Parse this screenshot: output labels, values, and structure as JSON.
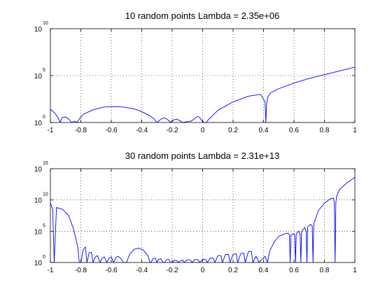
{
  "colors": {
    "background": "#ffffff",
    "axes": "#000000",
    "grid": "#000000",
    "line": "#0000ff"
  },
  "chart_data": [
    {
      "type": "line",
      "title": "10 random points    Lambda = 2.35e+06",
      "xlabel": "",
      "ylabel": "",
      "y_scale": "log",
      "xlim": [
        -1,
        1
      ],
      "ylim_log10": [
        0,
        10
      ],
      "grid": true,
      "x_ticks": [
        "-1",
        "-0.8",
        "-0.6",
        "-0.4",
        "-0.2",
        "0",
        "0.2",
        "0.4",
        "0.6",
        "0.8",
        "1"
      ],
      "y_ticks": [
        {
          "base": "10",
          "exp": "0",
          "log10": 0
        },
        {
          "base": "10",
          "exp": "5",
          "log10": 5
        },
        {
          "base": "10",
          "exp": "10",
          "log10": 10
        }
      ],
      "series": [
        {
          "x": [
            -1.0,
            -0.97,
            -0.95,
            -0.935,
            -0.925,
            -0.9,
            -0.875,
            -0.86,
            -0.84,
            -0.825,
            -0.805,
            -0.78,
            -0.72,
            -0.65,
            -0.58,
            -0.52,
            -0.45,
            -0.4,
            -0.35,
            -0.32,
            -0.3,
            -0.275,
            -0.25,
            -0.23,
            -0.21,
            -0.19,
            -0.17,
            -0.15,
            -0.13,
            -0.1,
            -0.075,
            -0.05,
            -0.035,
            -0.02,
            -0.005,
            0.01,
            0.025,
            0.035,
            0.1,
            0.2,
            0.3,
            0.38,
            0.41,
            0.415,
            0.42,
            0.43,
            0.45,
            0.5,
            0.6,
            0.7,
            0.8,
            0.9,
            1.0
          ],
          "log10": [
            1.4,
            1.0,
            0.5,
            0.0,
            0.5,
            0.6,
            0.3,
            0.0,
            0.15,
            0.0,
            0.5,
            0.9,
            1.35,
            1.65,
            1.7,
            1.65,
            1.45,
            1.15,
            0.75,
            0.4,
            0.0,
            0.35,
            0.5,
            0.3,
            0.0,
            0.28,
            0.35,
            0.2,
            0.0,
            0.1,
            0.15,
            0.45,
            0.65,
            0.55,
            0.2,
            0.0,
            0.0,
            0.25,
            1.3,
            2.2,
            2.8,
            3.0,
            2.2,
            0.0,
            2.0,
            2.8,
            3.2,
            3.6,
            4.2,
            4.7,
            5.1,
            5.5,
            5.9
          ]
        }
      ]
    },
    {
      "type": "line",
      "title": "30 random points    Lambda = 2.31e+13",
      "xlabel": "",
      "ylabel": "",
      "y_scale": "log",
      "xlim": [
        -1,
        1
      ],
      "ylim_log10": [
        0,
        15
      ],
      "grid": true,
      "x_ticks": [
        "-1",
        "-0.8",
        "-0.6",
        "-0.4",
        "-0.2",
        "0",
        "0.2",
        "0.4",
        "0.6",
        "0.8",
        "1"
      ],
      "y_ticks": [
        {
          "base": "10",
          "exp": "0",
          "log10": 0
        },
        {
          "base": "10",
          "exp": "5",
          "log10": 5
        },
        {
          "base": "10",
          "exp": "10",
          "log10": 10
        },
        {
          "base": "10",
          "exp": "15",
          "log10": 15
        }
      ],
      "series": [
        {
          "x": [
            -1.0,
            -0.985,
            -0.975,
            -0.96,
            -0.92,
            -0.88,
            -0.85,
            -0.82,
            -0.81,
            -0.8,
            -0.785,
            -0.77,
            -0.76,
            -0.745,
            -0.73,
            -0.72,
            -0.705,
            -0.69,
            -0.675,
            -0.66,
            -0.645,
            -0.63,
            -0.615,
            -0.6,
            -0.585,
            -0.57,
            -0.555,
            -0.54,
            -0.52,
            -0.5,
            -0.48,
            -0.45,
            -0.42,
            -0.39,
            -0.36,
            -0.345,
            -0.34,
            -0.325,
            -0.31,
            -0.3,
            -0.29,
            -0.275,
            -0.26,
            -0.25,
            -0.24,
            -0.225,
            -0.21,
            -0.2,
            -0.185,
            -0.17,
            -0.16,
            -0.145,
            -0.13,
            -0.12,
            -0.1,
            -0.08,
            -0.07,
            -0.05,
            -0.03,
            -0.02,
            0.0,
            0.02,
            0.03,
            0.05,
            0.07,
            0.08,
            0.1,
            0.12,
            0.13,
            0.15,
            0.17,
            0.18,
            0.2,
            0.22,
            0.23,
            0.25,
            0.27,
            0.28,
            0.3,
            0.32,
            0.33,
            0.35,
            0.37,
            0.39,
            0.41,
            0.425,
            0.44,
            0.47,
            0.5,
            0.54,
            0.56,
            0.57,
            0.575,
            0.58,
            0.6,
            0.605,
            0.61,
            0.615,
            0.63,
            0.64,
            0.645,
            0.65,
            0.67,
            0.68,
            0.685,
            0.69,
            0.71,
            0.72,
            0.725,
            0.73,
            0.76,
            0.8,
            0.84,
            0.86,
            0.865,
            0.87,
            0.875,
            0.88,
            0.9,
            0.95,
            1.0
          ],
          "log10": [
            9.5,
            8.5,
            0.0,
            8.8,
            8.5,
            7.5,
            5.5,
            2.5,
            0.0,
            0.0,
            2.0,
            2.5,
            0.0,
            1.6,
            1.6,
            0.0,
            0.9,
            1.1,
            0.0,
            0.7,
            0.9,
            0.0,
            0.7,
            0.9,
            0.0,
            0.8,
            1.0,
            0.7,
            0.0,
            0.0,
            1.3,
            2.1,
            2.3,
            2.0,
            1.1,
            0.0,
            0.0,
            0.6,
            0.7,
            0.0,
            0.5,
            0.6,
            0.0,
            0.0,
            0.4,
            0.5,
            0.0,
            0.0,
            0.35,
            0.3,
            0.0,
            0.3,
            0.35,
            0.0,
            0.45,
            0.4,
            0.0,
            0.5,
            0.45,
            0.0,
            0.5,
            0.5,
            0.0,
            0.7,
            0.7,
            0.0,
            1.1,
            1.1,
            0.0,
            1.3,
            1.3,
            0.0,
            1.3,
            1.4,
            0.0,
            1.4,
            1.5,
            0.0,
            1.7,
            1.8,
            0.0,
            1.0,
            0.0,
            0.5,
            1.0,
            0.0,
            1.8,
            3.3,
            4.2,
            4.6,
            4.7,
            4.4,
            0.0,
            4.4,
            4.6,
            4.3,
            0.0,
            4.6,
            5.0,
            4.6,
            0.0,
            4.9,
            5.6,
            5.0,
            0.0,
            5.7,
            6.1,
            5.8,
            0.0,
            6.2,
            8.3,
            9.5,
            10.2,
            10.3,
            9.5,
            0.0,
            9.6,
            10.6,
            11.7,
            12.8,
            13.6
          ]
        }
      ]
    }
  ]
}
